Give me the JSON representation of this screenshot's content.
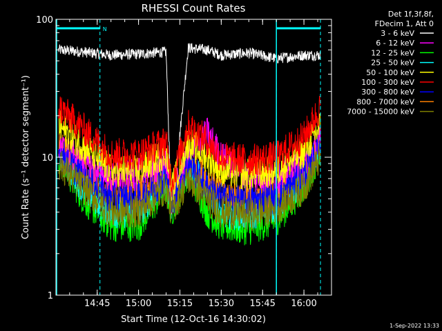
{
  "chart_data": {
    "type": "line",
    "title": "RHESSI Count Rates",
    "xlabel": "Start Time (12-Oct-16 14:30:02)",
    "ylabel": "Count Rate (s⁻¹ detector segment⁻¹)",
    "yscale": "log",
    "ylim": [
      1,
      100
    ],
    "xlim": [
      "14:30:02",
      "16:10:00"
    ],
    "xticks": [
      "14:45",
      "15:00",
      "15:15",
      "15:30",
      "15:45",
      "16:00"
    ],
    "yticks": [
      "1",
      "10",
      "100"
    ],
    "legend_header": [
      "Det 1f,3f,8f,",
      "FDecim 1, Att 0"
    ],
    "legend_position": "right",
    "footer": "1-Sep-2022 13:33",
    "annotations": [
      {
        "label": "N",
        "start": "14:30:02",
        "end": "14:46:00",
        "color": "#00ffff"
      },
      {
        "label": "",
        "start": "15:50:00",
        "end": "16:06:00",
        "color": "#00ffff"
      }
    ],
    "night_boundaries": [
      "14:46:00",
      "15:50:00",
      "16:06:00"
    ],
    "data_gap": [
      "15:12:00",
      "15:15:00"
    ],
    "x": [
      "14:31",
      "14:40",
      "14:50",
      "15:00",
      "15:10",
      "15:12",
      "15:18",
      "15:25",
      "15:30",
      "15:40",
      "15:50",
      "16:00",
      "16:06"
    ],
    "series": [
      {
        "name": "3 - 6 keV",
        "color": "#ffffff",
        "values": [
          60,
          58,
          55,
          56,
          58,
          3.5,
          62,
          60,
          55,
          57,
          52,
          55,
          55
        ]
      },
      {
        "name": "6 - 12 keV",
        "color": "#ff00ff",
        "values": [
          12,
          9,
          7,
          7.5,
          9,
          5,
          10,
          15,
          10,
          7.5,
          7,
          9,
          13
        ]
      },
      {
        "name": "12 - 25 keV",
        "color": "#00ff00",
        "values": [
          10,
          5,
          3.2,
          3.2,
          6,
          4,
          8,
          4,
          3.2,
          3,
          3.5,
          6,
          11
        ]
      },
      {
        "name": "25 - 50 keV",
        "color": "#00ffff",
        "values": [
          11,
          6,
          4,
          4,
          7,
          4.5,
          9,
          6,
          4,
          3.8,
          4.5,
          7,
          12
        ]
      },
      {
        "name": "50 - 100 keV",
        "color": "#ffff00",
        "values": [
          17,
          12,
          8,
          8,
          11,
          6,
          13,
          10,
          8,
          7.5,
          8,
          11,
          17
        ]
      },
      {
        "name": "100 - 300 keV",
        "color": "#ff0000",
        "values": [
          23,
          16,
          10.5,
          10.5,
          13,
          6.5,
          17,
          13,
          10,
          9.5,
          10,
          14,
          23
        ]
      },
      {
        "name": "300 - 800 keV",
        "color": "#0000ff",
        "values": [
          11,
          7,
          5,
          5,
          7,
          4.5,
          9,
          6,
          5,
          4.8,
          5,
          7.5,
          12
        ]
      },
      {
        "name": "800 - 7000 keV",
        "color": "#ff8000",
        "values": [
          12,
          8,
          5.5,
          5.5,
          8,
          5,
          9.5,
          7,
          5.5,
          5.2,
          5.5,
          8,
          13
        ]
      },
      {
        "name": "7000 - 15000 keV",
        "color": "#808000",
        "values": [
          9,
          6,
          4,
          4,
          6,
          4,
          7,
          5,
          4,
          3.8,
          4.2,
          6,
          10
        ]
      }
    ]
  }
}
